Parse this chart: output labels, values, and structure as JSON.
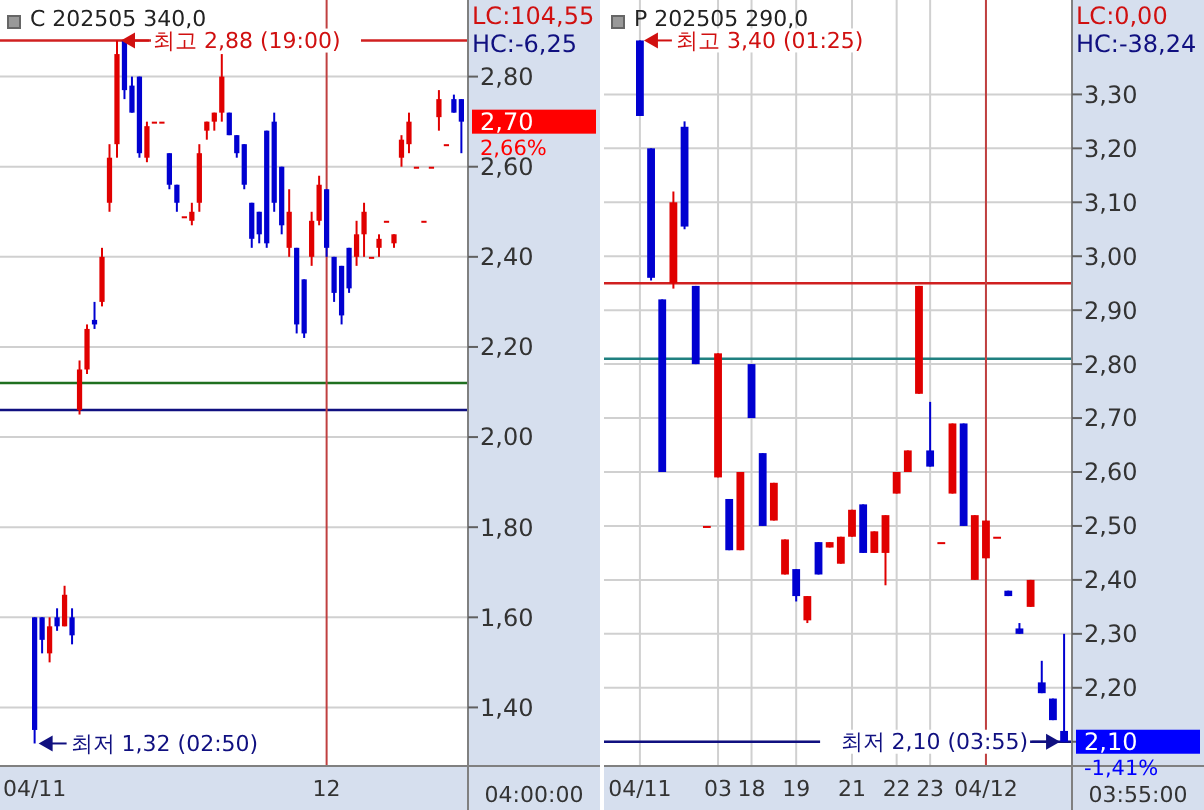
{
  "chart_data": [
    {
      "type": "candlestick",
      "title": "C 202505 340,0",
      "categories": [
        "04/11",
        null,
        null,
        null,
        null,
        null,
        null,
        null,
        null,
        null,
        null,
        null,
        null,
        null,
        null,
        null,
        null,
        null,
        null,
        null,
        null,
        null,
        null,
        null,
        null,
        null,
        null,
        null,
        null,
        null,
        null,
        null,
        null,
        null,
        null,
        null,
        null,
        null,
        null,
        "12",
        null,
        null,
        null,
        null,
        null,
        null,
        null,
        null,
        null,
        null,
        null,
        null,
        null,
        null,
        null,
        null,
        null,
        null
      ],
      "ohlc": [
        [
          1.6,
          1.6,
          1.32,
          1.35
        ],
        [
          1.6,
          1.6,
          1.52,
          1.55
        ],
        [
          1.52,
          1.6,
          1.5,
          1.58
        ],
        [
          1.6,
          1.62,
          1.57,
          1.58
        ],
        [
          1.58,
          1.67,
          1.58,
          1.65
        ],
        [
          1.6,
          1.62,
          1.54,
          1.56
        ],
        [
          2.06,
          2.17,
          2.05,
          2.15
        ],
        [
          2.15,
          2.25,
          2.14,
          2.24
        ],
        [
          2.26,
          2.3,
          2.24,
          2.25
        ],
        [
          2.3,
          2.42,
          2.29,
          2.4
        ],
        [
          2.52,
          2.65,
          2.5,
          2.62
        ],
        [
          2.65,
          2.88,
          2.62,
          2.85
        ],
        [
          2.88,
          2.88,
          2.75,
          2.77
        ],
        [
          2.78,
          2.8,
          2.72,
          2.72
        ],
        [
          2.8,
          2.8,
          2.62,
          2.63
        ],
        [
          2.62,
          2.7,
          2.61,
          2.69
        ],
        [
          2.7,
          2.7,
          2.7,
          2.7
        ],
        [
          2.7,
          2.7,
          2.7,
          2.7
        ],
        [
          2.63,
          2.63,
          2.55,
          2.56
        ],
        [
          2.56,
          2.56,
          2.5,
          2.52
        ],
        [
          2.49,
          2.49,
          2.49,
          2.49
        ],
        [
          2.48,
          2.52,
          2.47,
          2.5
        ],
        [
          2.52,
          2.65,
          2.5,
          2.63
        ],
        [
          2.68,
          2.7,
          2.66,
          2.7
        ],
        [
          2.7,
          2.72,
          2.68,
          2.72
        ],
        [
          2.72,
          2.85,
          2.7,
          2.8
        ],
        [
          2.72,
          2.72,
          2.67,
          2.67
        ],
        [
          2.67,
          2.67,
          2.62,
          2.63
        ],
        [
          2.65,
          2.65,
          2.55,
          2.56
        ],
        [
          2.52,
          2.52,
          2.42,
          2.44
        ],
        [
          2.5,
          2.5,
          2.43,
          2.45
        ],
        [
          2.68,
          2.68,
          2.42,
          2.43
        ],
        [
          2.7,
          2.72,
          2.5,
          2.52
        ],
        [
          2.6,
          2.6,
          2.45,
          2.47
        ],
        [
          2.42,
          2.55,
          2.4,
          2.5
        ],
        [
          2.42,
          2.42,
          2.23,
          2.25
        ],
        [
          2.35,
          2.35,
          2.22,
          2.23
        ],
        [
          2.4,
          2.5,
          2.38,
          2.48
        ],
        [
          2.48,
          2.58,
          2.47,
          2.56
        ],
        [
          2.55,
          2.55,
          2.4,
          2.42
        ],
        [
          2.4,
          2.4,
          2.3,
          2.32
        ],
        [
          2.38,
          2.38,
          2.25,
          2.27
        ],
        [
          2.42,
          2.42,
          2.32,
          2.33
        ],
        [
          2.4,
          2.48,
          2.38,
          2.45
        ],
        [
          2.45,
          2.52,
          2.4,
          2.5
        ],
        [
          2.4,
          2.4,
          2.4,
          2.4
        ],
        [
          2.42,
          2.45,
          2.4,
          2.44
        ],
        [
          2.48,
          2.48,
          2.48,
          2.48
        ],
        [
          2.43,
          2.45,
          2.42,
          2.45
        ],
        [
          2.62,
          2.67,
          2.6,
          2.66
        ],
        [
          2.65,
          2.72,
          2.63,
          2.7
        ],
        [
          2.6,
          2.6,
          2.6,
          2.6
        ],
        [
          2.48,
          2.48,
          2.48,
          2.48
        ],
        [
          2.6,
          2.6,
          2.6,
          2.6
        ],
        [
          2.71,
          2.77,
          2.68,
          2.75
        ],
        [
          2.65,
          2.65,
          2.65,
          2.65
        ],
        [
          2.75,
          2.76,
          2.72,
          2.72
        ],
        [
          2.75,
          2.75,
          2.63,
          2.7
        ]
      ],
      "ylim": [
        1.27,
        2.97
      ],
      "yticks": [
        {
          "value": 1.4,
          "label": "1,40"
        },
        {
          "value": 1.6,
          "label": "1,60"
        },
        {
          "value": 1.8,
          "label": "1,80"
        },
        {
          "value": 2.0,
          "label": "2,00"
        },
        {
          "value": 2.2,
          "label": "2,20"
        },
        {
          "value": 2.4,
          "label": "2,40"
        },
        {
          "value": 2.6,
          "label": "2,60"
        },
        {
          "value": 2.8,
          "label": "2,80"
        }
      ],
      "grid": "y",
      "ref_lines": [
        {
          "axis": "y",
          "value": 2.88,
          "color": "#d02020"
        },
        {
          "axis": "y",
          "value": 2.12,
          "color": "#207020"
        },
        {
          "axis": "y",
          "value": 2.06,
          "color": "#101080"
        },
        {
          "axis": "x",
          "value": "12",
          "color": "#c04040"
        }
      ],
      "annotations": [
        "최고 2,88 (19:00)",
        "최저 1,32 (02:50)",
        "LC:104,55",
        "HC:-6,25",
        "2,70",
        "2,66%",
        "04:00:00"
      ]
    },
    {
      "type": "candlestick",
      "title": "P 202505 290,0",
      "categories": [
        "04/11",
        null,
        null,
        null,
        null,
        null,
        null,
        "03",
        null,
        null,
        "18",
        null,
        null,
        null,
        "19",
        null,
        null,
        null,
        null,
        "21",
        null,
        null,
        null,
        "22",
        null,
        null,
        "23",
        null,
        null,
        null,
        null,
        "04/12",
        null,
        null,
        null,
        null,
        null,
        null,
        null
      ],
      "ohlc": [
        [
          3.4,
          3.4,
          3.26,
          3.26
        ],
        [
          3.2,
          3.2,
          2.955,
          2.96
        ],
        [
          2.92,
          2.92,
          2.6,
          2.6
        ],
        [
          2.95,
          3.12,
          2.94,
          3.1
        ],
        [
          3.24,
          3.25,
          3.05,
          3.055
        ],
        [
          2.945,
          2.945,
          2.8,
          2.8
        ],
        [
          2.5,
          2.5,
          2.5,
          2.5
        ],
        [
          2.59,
          2.82,
          2.59,
          2.82
        ],
        [
          2.55,
          2.55,
          2.455,
          2.455
        ],
        [
          2.455,
          2.6,
          2.455,
          2.6
        ],
        [
          2.8,
          2.8,
          2.7,
          2.7
        ],
        [
          2.635,
          2.635,
          2.5,
          2.5
        ],
        [
          2.51,
          2.58,
          2.51,
          2.58
        ],
        [
          2.41,
          2.475,
          2.41,
          2.475
        ],
        [
          2.42,
          2.42,
          2.36,
          2.37
        ],
        [
          2.325,
          2.37,
          2.32,
          2.37
        ],
        [
          2.47,
          2.47,
          2.41,
          2.41
        ],
        [
          2.46,
          2.47,
          2.46,
          2.47
        ],
        [
          2.43,
          2.48,
          2.43,
          2.48
        ],
        [
          2.48,
          2.53,
          2.48,
          2.53
        ],
        [
          2.54,
          2.54,
          2.45,
          2.45
        ],
        [
          2.45,
          2.49,
          2.45,
          2.49
        ],
        [
          2.45,
          2.52,
          2.39,
          2.52
        ],
        [
          2.56,
          2.6,
          2.56,
          2.6
        ],
        [
          2.6,
          2.64,
          2.6,
          2.64
        ],
        [
          2.745,
          2.945,
          2.745,
          2.945
        ],
        [
          2.64,
          2.73,
          2.61,
          2.61
        ],
        [
          2.47,
          2.47,
          2.47,
          2.47
        ],
        [
          2.56,
          2.69,
          2.56,
          2.69
        ],
        [
          2.69,
          2.69,
          2.5,
          2.5
        ],
        [
          2.4,
          2.52,
          2.4,
          2.52
        ],
        [
          2.44,
          2.51,
          2.44,
          2.51
        ],
        [
          2.48,
          2.48,
          2.48,
          2.48
        ],
        [
          2.38,
          2.38,
          2.37,
          2.37
        ],
        [
          2.31,
          2.32,
          2.3,
          2.3
        ],
        [
          2.35,
          2.4,
          2.35,
          2.4
        ],
        [
          2.21,
          2.25,
          2.19,
          2.19
        ],
        [
          2.18,
          2.18,
          2.14,
          2.14
        ],
        [
          2.12,
          2.3,
          2.1,
          2.1
        ]
      ],
      "ylim": [
        2.055,
        3.475
      ],
      "yticks": [
        {
          "value": 2.1,
          "label": null
        },
        {
          "value": 2.2,
          "label": "2,20"
        },
        {
          "value": 2.3,
          "label": "2,30"
        },
        {
          "value": 2.4,
          "label": "2,40"
        },
        {
          "value": 2.5,
          "label": "2,50"
        },
        {
          "value": 2.6,
          "label": "2,60"
        },
        {
          "value": 2.7,
          "label": "2,70"
        },
        {
          "value": 2.8,
          "label": "2,80"
        },
        {
          "value": 2.9,
          "label": "2,90"
        },
        {
          "value": 3.0,
          "label": "3,00"
        },
        {
          "value": 3.1,
          "label": "3,10"
        },
        {
          "value": 3.2,
          "label": "3,20"
        },
        {
          "value": 3.3,
          "label": "3,30"
        }
      ],
      "grid": true,
      "ref_lines": [
        {
          "axis": "y",
          "value": 2.95,
          "color": "#d02020"
        },
        {
          "axis": "y",
          "value": 2.81,
          "color": "#208080"
        },
        {
          "axis": "y",
          "value": 2.1,
          "color": "#101080"
        },
        {
          "axis": "x",
          "value": "04/12",
          "color": "#c04040"
        }
      ],
      "annotations": [
        "최고 3,40 (01:25)",
        "최저 2,10 (03:55)",
        "LC:0,00",
        "HC:-38,24",
        "2,10",
        "-1,41%",
        "03:55:00"
      ]
    }
  ]
}
